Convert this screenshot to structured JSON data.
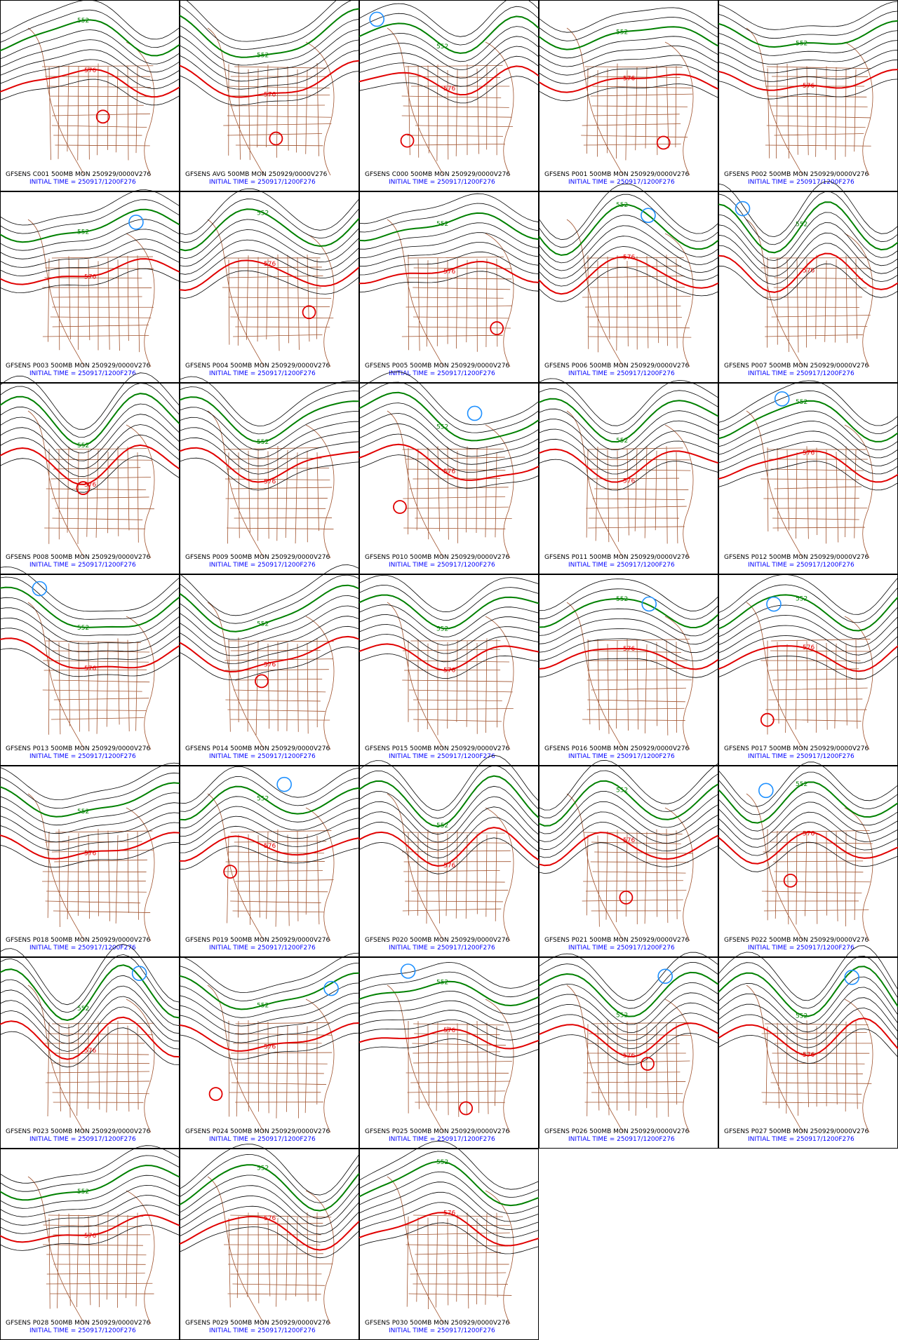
{
  "panels": [
    {
      "title": "GFSENS C001 500MB MON 250929/0000V276",
      "init": "INITIAL TIME = 250917/1200F276",
      "labels": [
        "552",
        "576"
      ]
    },
    {
      "title": "GFSENS AVG 500MB MON 250929/0000V276",
      "init": "INITIAL TIME = 250917/1200F276",
      "labels": [
        "552",
        "576"
      ]
    },
    {
      "title": "GFSENS C000 500MB MON 250929/0000V276",
      "init": "INITIAL TIME = 250917/1200F276",
      "labels": [
        "552",
        "576"
      ]
    },
    {
      "title": "GFSENS P001 500MB MON 250929/0000V276",
      "init": "INITIAL TIME = 250917/1200F276",
      "labels": [
        "552",
        "576"
      ]
    },
    {
      "title": "GFSENS P002 500MB MON 250929/0000V276",
      "init": "INITIAL TIME = 250917/1200F276",
      "labels": [
        "552",
        "576"
      ]
    },
    {
      "title": "GFSENS P003 500MB MON 250929/0000V276",
      "init": "INITIAL TIME = 250917/1200F276",
      "labels": [
        "552",
        "576"
      ]
    },
    {
      "title": "GFSENS P004 500MB MON 250929/0000V276",
      "init": "INITIAL TIME = 250917/1200F276",
      "labels": [
        "552",
        "576"
      ]
    },
    {
      "title": "GFSENS P005 500MB MON 250929/0000V276",
      "init": "INITIAL TIME = 250917/1200F276",
      "labels": [
        "552",
        "576"
      ]
    },
    {
      "title": "GFSENS P006 500MB MON 250929/0000V276",
      "init": "INITIAL TIME = 250917/1200F276",
      "labels": [
        "552",
        "576"
      ]
    },
    {
      "title": "GFSENS P007 500MB MON 250929/0000V276",
      "init": "INITIAL TIME = 250917/1200F276",
      "labels": [
        "552",
        "576"
      ]
    },
    {
      "title": "GFSENS P008 500MB MON 250929/0000V276",
      "init": "INITIAL TIME = 250917/1200F276",
      "labels": [
        "552",
        "576"
      ]
    },
    {
      "title": "GFSENS P009 500MB MON 250929/0000V276",
      "init": "INITIAL TIME = 250917/1200F276",
      "labels": [
        "552",
        "576"
      ]
    },
    {
      "title": "GFSENS P010 500MB MON 250929/0000V276",
      "init": "INITIAL TIME = 250917/1200F276",
      "labels": [
        "552",
        "576"
      ]
    },
    {
      "title": "GFSENS P011 500MB MON 250929/0000V276",
      "init": "INITIAL TIME = 250917/1200F276",
      "labels": [
        "552",
        "576"
      ]
    },
    {
      "title": "GFSENS P012 500MB MON 250929/0000V276",
      "init": "INITIAL TIME = 250917/1200F276",
      "labels": [
        "552",
        "576"
      ]
    },
    {
      "title": "GFSENS P013 500MB MON 250929/0000V276",
      "init": "INITIAL TIME = 250917/1200F276",
      "labels": [
        "552",
        "576"
      ]
    },
    {
      "title": "GFSENS P014 500MB MON 250929/0000V276",
      "init": "INITIAL TIME = 250917/1200F276",
      "labels": [
        "552",
        "576"
      ]
    },
    {
      "title": "GFSENS P015 500MB MON 250929/0000V276",
      "init": "INITIAL TIME = 250917/1200F276",
      "labels": [
        "552",
        "576"
      ]
    },
    {
      "title": "GFSENS P016 500MB MON 250929/0000V276",
      "init": "INITIAL TIME = 250917/1200F276",
      "labels": [
        "552",
        "576"
      ]
    },
    {
      "title": "GFSENS P017 500MB MON 250929/0000V276",
      "init": "INITIAL TIME = 250917/1200F276",
      "labels": [
        "552",
        "576"
      ]
    },
    {
      "title": "GFSENS P018 500MB MON 250929/0000V276",
      "init": "INITIAL TIME = 250917/1200F276",
      "labels": [
        "552",
        "576"
      ]
    },
    {
      "title": "GFSENS P019 500MB MON 250929/0000V276",
      "init": "INITIAL TIME = 250917/1200F276",
      "labels": [
        "552",
        "576"
      ]
    },
    {
      "title": "GFSENS P020 500MB MON 250929/0000V276",
      "init": "INITIAL TIME = 250917/1200F276",
      "labels": [
        "552",
        "576"
      ]
    },
    {
      "title": "GFSENS P021 500MB MON 250929/0000V276",
      "init": "INITIAL TIME = 250917/1200F276",
      "labels": [
        "552",
        "576"
      ]
    },
    {
      "title": "GFSENS P022 500MB MON 250929/0000V276",
      "init": "INITIAL TIME = 250917/1200F276",
      "labels": [
        "552",
        "576"
      ]
    },
    {
      "title": "GFSENS P023 500MB MON 250929/0000V276",
      "init": "INITIAL TIME = 250917/1200F276",
      "labels": [
        "552",
        "576"
      ]
    },
    {
      "title": "GFSENS P024 500MB MON 250929/0000V276",
      "init": "INITIAL TIME = 250917/1200F276",
      "labels": [
        "552",
        "576"
      ]
    },
    {
      "title": "GFSENS P025 500MB MON 250929/0000V276",
      "init": "INITIAL TIME = 250917/1200F276",
      "labels": [
        "552",
        "576"
      ]
    },
    {
      "title": "GFSENS P026 500MB MON 250929/0000V276",
      "init": "INITIAL TIME = 250917/1200F276",
      "labels": [
        "552",
        "576"
      ]
    },
    {
      "title": "GFSENS P027 500MB MON 250929/0000V276",
      "init": "INITIAL TIME = 250917/1200F276",
      "labels": [
        "552",
        "576"
      ]
    },
    {
      "title": "GFSENS P028 500MB MON 250929/0000V276",
      "init": "INITIAL TIME = 250917/1200F276",
      "labels": [
        "552",
        "576"
      ]
    },
    {
      "title": "GFSENS P029 500MB MON 250929/0000V276",
      "init": "INITIAL TIME = 250917/1200F276",
      "labels": [
        "552",
        "576"
      ]
    },
    {
      "title": "GFSENS P030 500MB MON 250929/0000V276",
      "init": "INITIAL TIME = 250917/1200F276",
      "labels": [
        "552",
        "576"
      ]
    }
  ]
}
